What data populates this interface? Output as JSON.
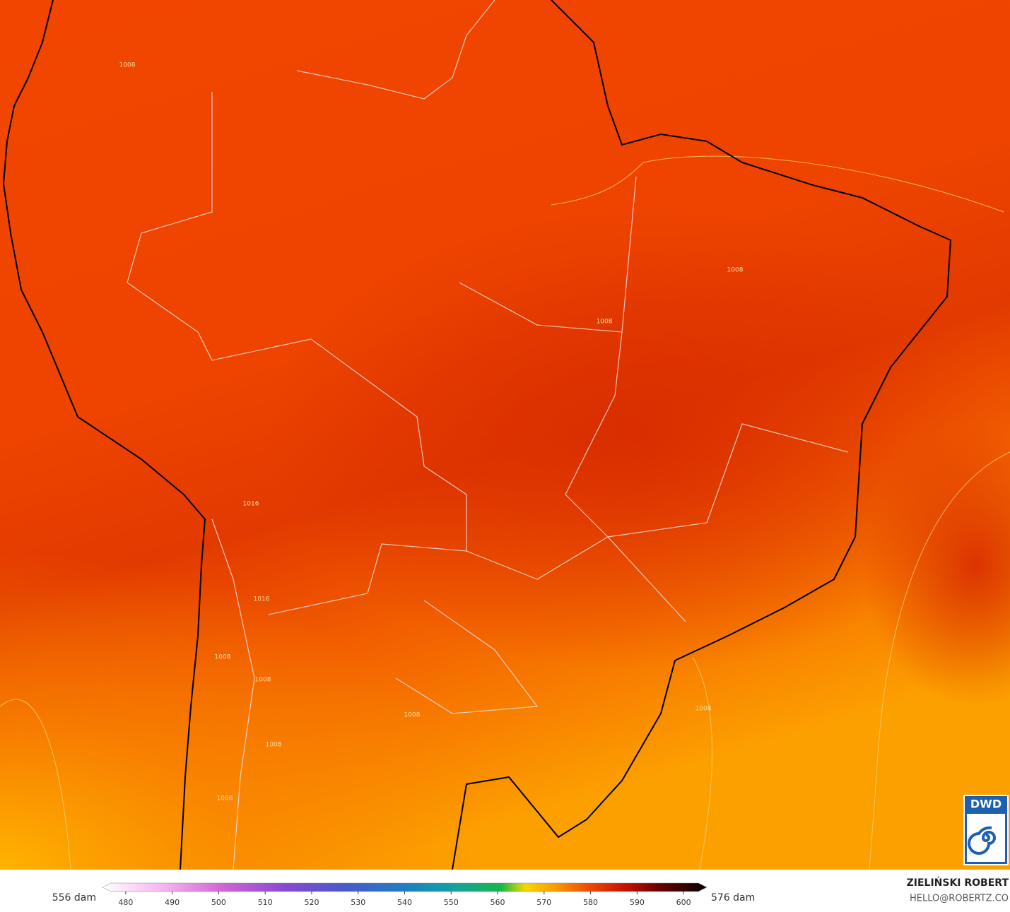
{
  "colorbar": {
    "left_label": "556 dam",
    "right_label": "576 dam",
    "lim": [
      475,
      605
    ],
    "ticks": [
      480,
      490,
      500,
      510,
      520,
      530,
      540,
      550,
      560,
      570,
      580,
      590,
      600
    ]
  },
  "contour_labels": [
    "1008",
    "1008",
    "1008",
    "1008",
    "1008",
    "1008",
    "1008",
    "1016",
    "1016",
    "1008",
    "1008"
  ],
  "credit": {
    "name": "ZIELIŃSKI ROBERT",
    "email": "HELLO@ROBERTZ.CO"
  },
  "logo": "DWD"
}
